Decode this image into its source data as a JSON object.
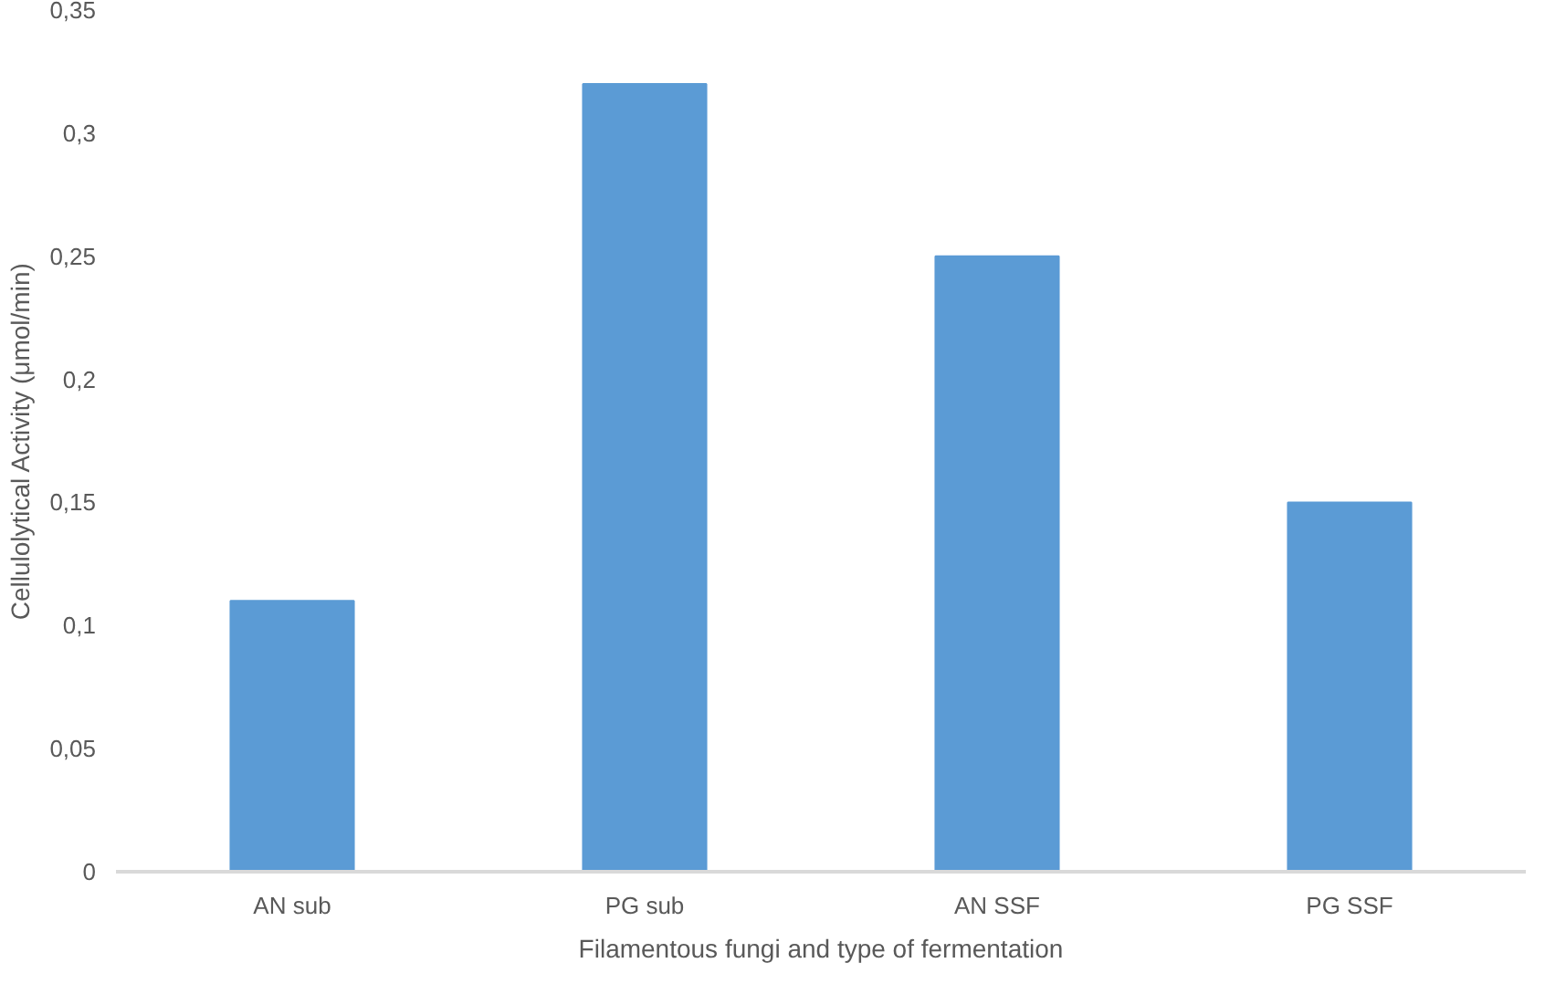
{
  "chart_data": {
    "type": "bar",
    "xlabel": "Filamentous fungi and type of fermentation",
    "ylabel": "Cellulolytical Activity (μmol/min)",
    "categories": [
      "AN sub",
      "PG sub",
      "AN SSF",
      "PG SSF"
    ],
    "values": [
      0.11,
      0.32,
      0.25,
      0.15
    ],
    "color": "#5b9bd5",
    "ylim": [
      0,
      0.35
    ],
    "yticks": [
      {
        "value": 0,
        "label": "0"
      },
      {
        "value": 0.05,
        "label": "0,05"
      },
      {
        "value": 0.1,
        "label": "0,1"
      },
      {
        "value": 0.15,
        "label": "0,15"
      },
      {
        "value": 0.2,
        "label": "0,2"
      },
      {
        "value": 0.25,
        "label": "0,25"
      },
      {
        "value": 0.3,
        "label": "0,3"
      },
      {
        "value": 0.35,
        "label": "0,35"
      }
    ],
    "grid": false
  }
}
